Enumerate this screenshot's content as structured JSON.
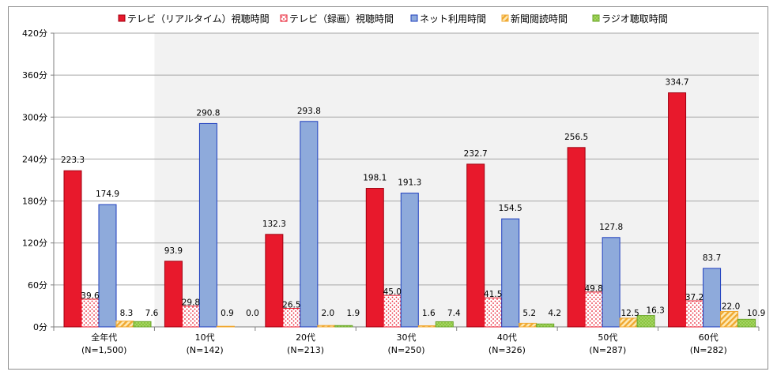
{
  "chart_data": {
    "type": "bar",
    "categories": [
      "全年代",
      "10代",
      "20代",
      "30代",
      "40代",
      "50代",
      "60代"
    ],
    "category_sublabels": [
      "(N=1,500)",
      "(N=142)",
      "(N=213)",
      "(N=250)",
      "(N=326)",
      "(N=287)",
      "(N=282)"
    ],
    "series": [
      {
        "name": "テレビ（リアルタイム）視聴時間",
        "values": [
          223.3,
          93.9,
          132.3,
          198.1,
          232.7,
          256.5,
          334.7
        ],
        "value_labels": [
          "223.3",
          "93.9",
          "132.3",
          "198.1",
          "232.7",
          "256.5",
          "334.7"
        ],
        "color": "#e8192c",
        "pattern": "solid"
      },
      {
        "name": "テレビ（録画）視聴時間",
        "values": [
          39.6,
          29.8,
          26.5,
          45.0,
          41.5,
          49.8,
          37.2
        ],
        "value_labels": [
          "39.6",
          "29.8",
          "26.5",
          "45.0",
          "41.5",
          "49.8",
          "37.2"
        ],
        "color": "#ff4040",
        "pattern": "dots"
      },
      {
        "name": "ネット利用時間",
        "values": [
          174.9,
          290.8,
          293.8,
          191.3,
          154.5,
          127.8,
          83.7
        ],
        "value_labels": [
          "174.9",
          "290.8",
          "293.8",
          "191.3",
          "154.5",
          "127.8",
          "83.7"
        ],
        "color": "#8eaadb",
        "pattern": "solid"
      },
      {
        "name": "新聞閲読時間",
        "values": [
          8.3,
          0.9,
          2.0,
          1.6,
          5.2,
          12.5,
          22.0
        ],
        "value_labels": [
          "8.3",
          "0.9",
          "2.0",
          "1.6",
          "5.2",
          "12.5",
          "22.0"
        ],
        "color": "#f4b942",
        "pattern": "stripes"
      },
      {
        "name": "ラジオ聴取時間",
        "values": [
          7.6,
          0.0,
          1.9,
          7.4,
          4.2,
          16.3,
          10.9
        ],
        "value_labels": [
          "7.6",
          "0.0",
          "1.9",
          "7.4",
          "4.2",
          "16.3",
          "10.9"
        ],
        "color": "#8cc63f",
        "pattern": "dots"
      }
    ],
    "yticks": [
      "0分",
      "60分",
      "120分",
      "180分",
      "240分",
      "300分",
      "360分",
      "420分"
    ],
    "ylim": [
      0,
      420
    ],
    "grid": true,
    "legend_position": "top",
    "colors": {
      "tv_realtime": "#e8192c",
      "tv_recorded": "#ff4040",
      "net": "#8eaadb",
      "net_border": "#2040c0",
      "newspaper": "#f4b942",
      "radio": "#8cc63f",
      "plot_bg": "#f2f2f2",
      "grid": "#a6a6a6"
    }
  }
}
